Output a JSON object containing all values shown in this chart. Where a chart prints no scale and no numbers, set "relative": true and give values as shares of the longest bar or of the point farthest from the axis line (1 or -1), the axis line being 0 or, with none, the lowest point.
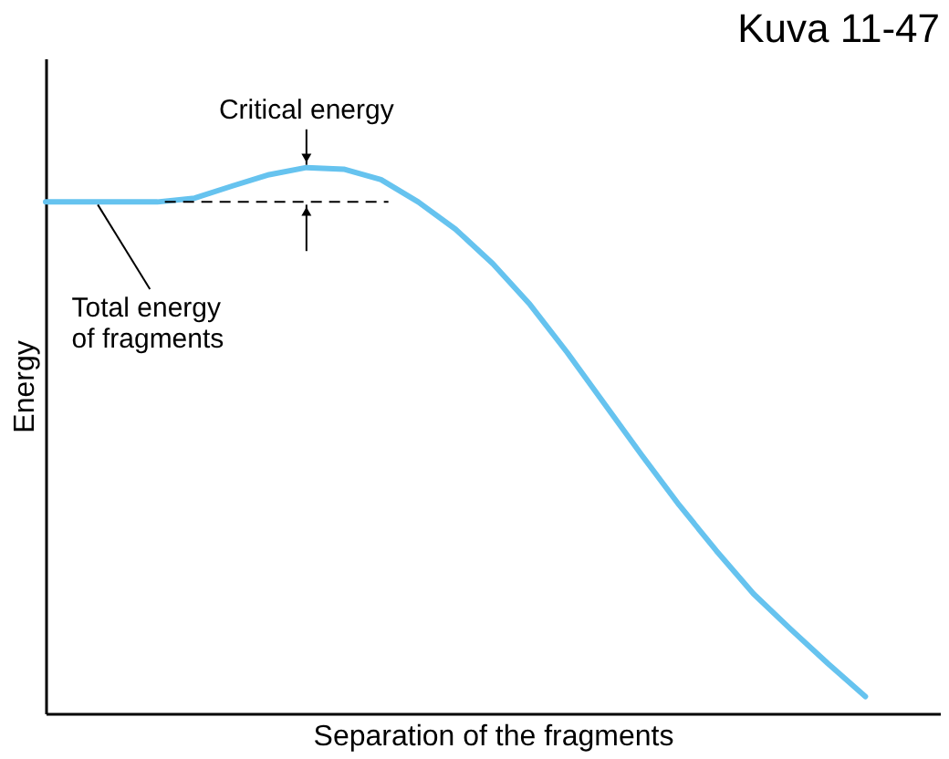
{
  "chart_data": {
    "type": "line",
    "relative": true,
    "title": "Kuva 11-47",
    "xlabel": "Separation of the fragments",
    "ylabel": "Energy",
    "categories": [
      null,
      null,
      null,
      null,
      null,
      null,
      null,
      null,
      null,
      null,
      null,
      null,
      null,
      null,
      null,
      null,
      null,
      null,
      null,
      null,
      null,
      null,
      null,
      null,
      null
    ],
    "series": [
      {
        "color": "#66c3ef",
        "values": [
          0.937,
          0.937,
          0.937,
          0.937,
          0.944,
          0.966,
          0.987,
          1,
          0.997,
          0.978,
          0.937,
          0.887,
          0.824,
          0.749,
          0.661,
          0.567,
          0.473,
          0.382,
          0.298,
          0.219,
          0.154,
          0.091,
          0.031,
          null,
          null
        ]
      }
    ],
    "annotations": [
      "Critical energy",
      "Total energy\nof fragments"
    ],
    "ref_lines": [
      {
        "axis": "y",
        "value": 0.937,
        "line_style": "dashed",
        "color": "#000000"
      }
    ],
    "grid": false,
    "marker": "none",
    "line_style": "solid"
  }
}
